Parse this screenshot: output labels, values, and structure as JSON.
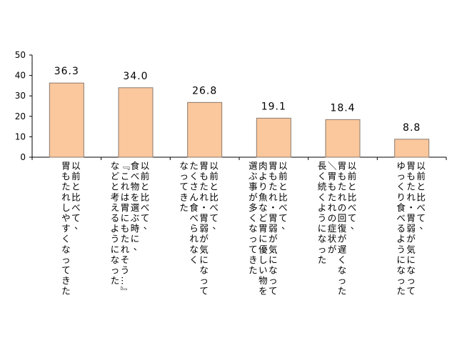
{
  "chart_data": {
    "type": "bar",
    "title": "",
    "xlabel": "",
    "ylabel": "",
    "ylim": [
      0,
      50
    ],
    "yticks": [
      0,
      10,
      20,
      30,
      40,
      50
    ],
    "grid": false,
    "colors": {
      "bar_fill": "#FBC79C",
      "bar_stroke": "#8A7A6E",
      "axis": "#000000"
    },
    "values": [
      36.3,
      34.0,
      26.8,
      19.1,
      18.4,
      8.8
    ],
    "value_labels": [
      "36.3",
      "34.0",
      "26.8",
      "19.1",
      "18.4",
      "8.8"
    ],
    "categories": [
      [
        "以前と比べて、",
        "胃もたれしやすくなってきた"
      ],
      [
        "以前と比べて、",
        "食べ物を選ぶ時に、",
        "『これは胃にもたれそう…』",
        "などと考えるようになった"
      ],
      [
        "以前と比べて、",
        "胃もたれ・胃弱が気になって",
        "たくさん食べられなく",
        "なってきた"
      ],
      [
        "以前と比べて、",
        "胃もたれ・胃弱が気になって",
        "肉より魚など胃に優しい物を",
        "選ぶ事が多くなってきた"
      ],
      [
        "以前と比べて、",
        "胃もたれの回復が遅くなった",
        "／胃もたれの症状が",
        "長く続くようになった"
      ],
      [
        "以前と比べて、",
        "胃もたれ・胃弱が気になって",
        "ゆっくり食べるようになった"
      ]
    ]
  }
}
